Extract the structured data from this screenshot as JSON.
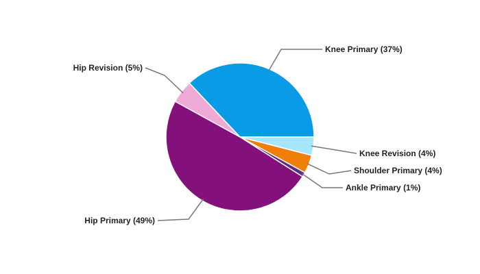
{
  "chart_data": {
    "type": "pie",
    "categories": [
      "Knee Primary",
      "Knee Revision",
      "Shoulder Primary",
      "Ankle Primary",
      "Hip Primary",
      "Hip Revision"
    ],
    "values": [
      37,
      4,
      4,
      1,
      49,
      5
    ],
    "value_labels": [
      "(37%)",
      "(4%)",
      "(4%)",
      "(1%)",
      "(49%)",
      "(5%)"
    ],
    "colors": [
      "#0a9be6",
      "#a6e6ff",
      "#f07f09",
      "#5a2d82",
      "#84117b",
      "#f0aad8"
    ]
  }
}
